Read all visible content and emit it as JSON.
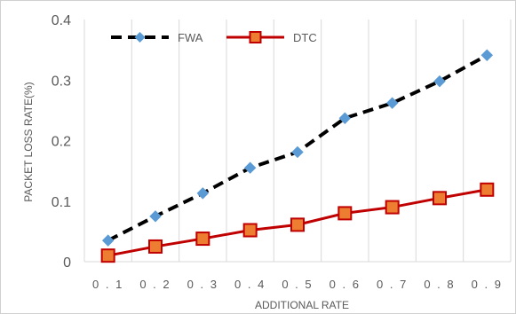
{
  "chart_data": {
    "type": "line",
    "title": "",
    "xlabel": "ADDITIONAL RATE",
    "ylabel": "PACKET LOSS RATE(%)",
    "categories": [
      "0.1",
      "0.2",
      "0.3",
      "0.4",
      "0.5",
      "0.6",
      "0.7",
      "0.8",
      "0.9"
    ],
    "x_tick_labels": [
      "0 . 1",
      "0 . 2",
      "0 . 3",
      "0 . 4",
      "0 . 5",
      "0 . 6",
      "0 . 7",
      "0 . 8",
      "0 . 9"
    ],
    "ylim": [
      0,
      0.4
    ],
    "y_ticks": [
      0,
      0.1,
      0.2,
      0.3,
      0.4
    ],
    "y_tick_labels": [
      "0",
      "0.1",
      "0.2",
      "0.3",
      "0.4"
    ],
    "grid": "vertical",
    "legend_position": "top",
    "series": [
      {
        "name": "FWA",
        "values": [
          0.035,
          0.075,
          0.113,
          0.155,
          0.181,
          0.237,
          0.262,
          0.298,
          0.341
        ],
        "color": "#000000",
        "marker_color": "#5b9bd5",
        "line_style": "dashed",
        "marker": "diamond"
      },
      {
        "name": "DTC",
        "values": [
          0.01,
          0.025,
          0.038,
          0.052,
          0.061,
          0.08,
          0.09,
          0.105,
          0.119
        ],
        "color": "#c00000",
        "marker_color": "#c00000",
        "marker_fill": "#ed7d31",
        "line_style": "solid",
        "marker": "square"
      }
    ]
  }
}
